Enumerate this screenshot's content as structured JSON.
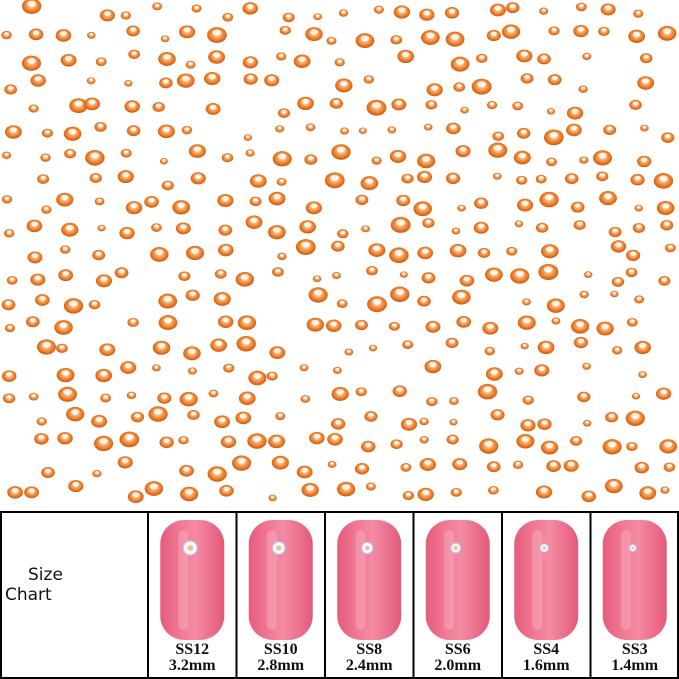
{
  "size_chart": {
    "label": [
      "Size",
      "Chart"
    ],
    "sizes": [
      {
        "name": "SS12",
        "diameter": "3.2mm"
      },
      {
        "name": "SS10",
        "diameter": "2.8mm"
      },
      {
        "name": "SS8",
        "diameter": "2.4mm"
      },
      {
        "name": "SS6",
        "diameter": "2.0mm"
      },
      {
        "name": "SS4",
        "diameter": "1.6mm"
      },
      {
        "name": "SS3",
        "diameter": "1.4mm"
      }
    ]
  }
}
